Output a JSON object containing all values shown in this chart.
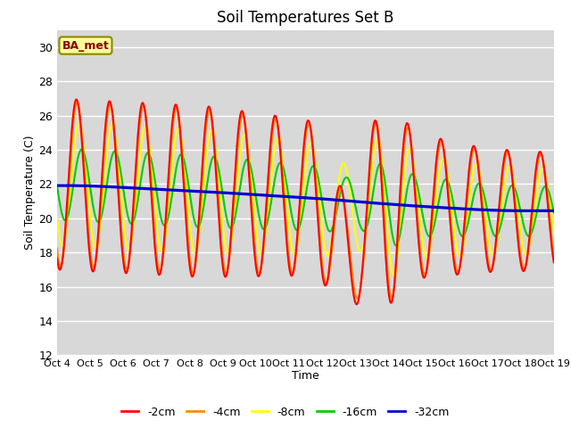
{
  "title": "Soil Temperatures Set B",
  "xlabel": "Time",
  "ylabel": "Soil Temperature (C)",
  "ylim": [
    12,
    31
  ],
  "yticks": [
    12,
    14,
    16,
    18,
    20,
    22,
    24,
    26,
    28,
    30
  ],
  "annotation": "BA_met",
  "annotation_color": "#8B0000",
  "annotation_bg": "#FFFF99",
  "colors": {
    "-2cm": "#FF0000",
    "-4cm": "#FF8C00",
    "-8cm": "#FFFF00",
    "-16cm": "#00CC00",
    "-32cm": "#0000CD"
  },
  "line_width": 1.5,
  "n_days": 15,
  "start_day": 4,
  "bg_color": "#E0E0E0",
  "grid_color": "#FFFFFF"
}
